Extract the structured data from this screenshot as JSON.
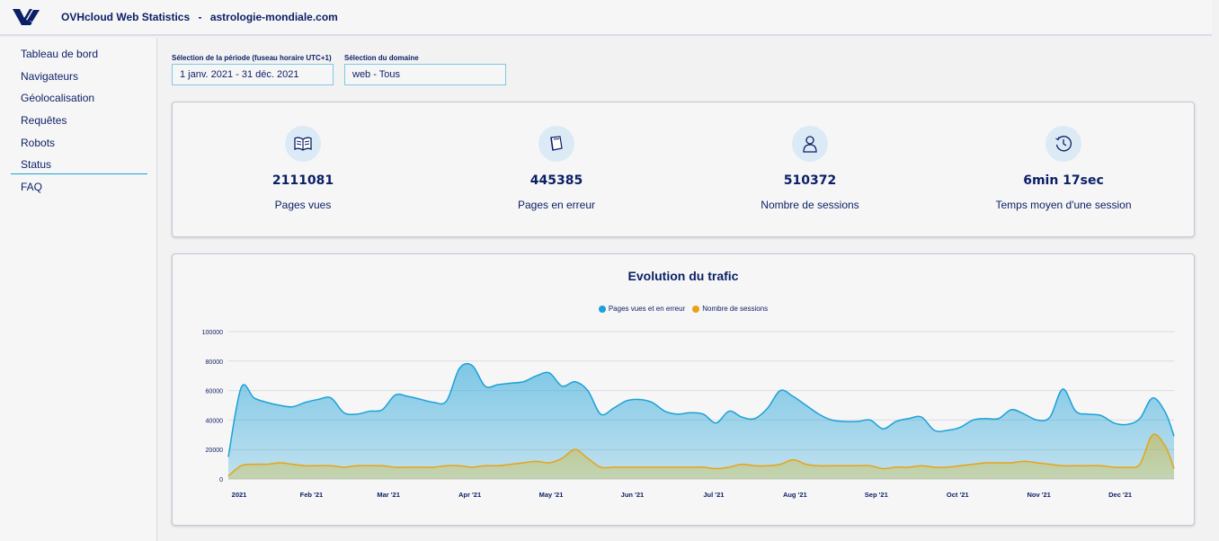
{
  "app": {
    "title": "OVHcloud Web Statistics",
    "separator": "-",
    "domain": "astrologie-mondiale.com"
  },
  "sidebar": {
    "items": [
      {
        "label": "Tableau de bord"
      },
      {
        "label": "Navigateurs"
      },
      {
        "label": "Géolocalisation"
      },
      {
        "label": "Requêtes"
      },
      {
        "label": "Robots"
      },
      {
        "label": "Status"
      },
      {
        "label": "FAQ"
      }
    ]
  },
  "filters": {
    "period_label": "Sélection de la période (fuseau horaire UTC+1)",
    "period_value": "1 janv. 2021 - 31 déc. 2021",
    "domain_label": "Sélection du domaine",
    "domain_value": "web - Tous"
  },
  "kpis": [
    {
      "icon": "open-book-icon",
      "value": "2111081",
      "label": "Pages vues"
    },
    {
      "icon": "closed-book-icon",
      "value": "445385",
      "label": "Pages en erreur"
    },
    {
      "icon": "user-icon",
      "value": "510372",
      "label": "Nombre de sessions"
    },
    {
      "icon": "clock-history-icon",
      "value": "6min 17sec",
      "label": "Temps moyen d'une session"
    }
  ],
  "colors": {
    "accent": "#1ca1d8",
    "sessions": "#e8a317",
    "text": "#0b1f66"
  },
  "chart_data": {
    "type": "area",
    "title": "Evolution du trafic",
    "x_ticks": [
      "2021",
      "Feb '21",
      "Mar '21",
      "Apr '21",
      "May '21",
      "Jun '21",
      "Jul '21",
      "Aug '21",
      "Sep '21",
      "Oct '21",
      "Nov '21",
      "Dec '21"
    ],
    "y_ticks": [
      "100000",
      "80000",
      "60000",
      "40000",
      "20000",
      "0"
    ],
    "ylim": [
      0,
      100000
    ],
    "legend_placement": "top-center",
    "grid": true,
    "series": [
      {
        "name": "Pages vues et en erreur",
        "color": "#1ca1d8",
        "points": [
          [
            0,
            15000
          ],
          [
            3,
            62000
          ],
          [
            6,
            55000
          ],
          [
            9,
            52000
          ],
          [
            12,
            50000
          ],
          [
            15,
            49000
          ],
          [
            18,
            52000
          ],
          [
            21,
            54000
          ],
          [
            24,
            55000
          ],
          [
            27,
            45000
          ],
          [
            30,
            44000
          ],
          [
            33,
            46000
          ],
          [
            36,
            47000
          ],
          [
            39,
            57000
          ],
          [
            42,
            56000
          ],
          [
            45,
            54000
          ],
          [
            48,
            52000
          ],
          [
            51,
            53000
          ],
          [
            54,
            75000
          ],
          [
            57,
            77000
          ],
          [
            60,
            63000
          ],
          [
            63,
            64000
          ],
          [
            66,
            65000
          ],
          [
            69,
            66000
          ],
          [
            72,
            70000
          ],
          [
            75,
            72000
          ],
          [
            78,
            63000
          ],
          [
            81,
            66000
          ],
          [
            84,
            60000
          ],
          [
            87,
            44000
          ],
          [
            90,
            48000
          ],
          [
            93,
            53000
          ],
          [
            96,
            54000
          ],
          [
            99,
            52000
          ],
          [
            102,
            46000
          ],
          [
            105,
            44000
          ],
          [
            108,
            45000
          ],
          [
            111,
            44000
          ],
          [
            114,
            38000
          ],
          [
            117,
            46000
          ],
          [
            120,
            42000
          ],
          [
            123,
            41000
          ],
          [
            126,
            48000
          ],
          [
            129,
            60000
          ],
          [
            132,
            56000
          ],
          [
            135,
            50000
          ],
          [
            138,
            44000
          ],
          [
            141,
            40000
          ],
          [
            144,
            39000
          ],
          [
            147,
            39000
          ],
          [
            150,
            40000
          ],
          [
            153,
            34000
          ],
          [
            156,
            39000
          ],
          [
            159,
            41000
          ],
          [
            162,
            42000
          ],
          [
            165,
            33000
          ],
          [
            168,
            33000
          ],
          [
            171,
            35000
          ],
          [
            174,
            40000
          ],
          [
            177,
            41000
          ],
          [
            180,
            41000
          ],
          [
            183,
            47000
          ],
          [
            186,
            44000
          ],
          [
            189,
            40000
          ],
          [
            192,
            42000
          ],
          [
            195,
            61000
          ],
          [
            198,
            46000
          ],
          [
            201,
            44000
          ],
          [
            204,
            43000
          ],
          [
            207,
            38000
          ],
          [
            210,
            37000
          ],
          [
            213,
            41000
          ],
          [
            216,
            55000
          ],
          [
            219,
            45000
          ],
          [
            221,
            29000
          ]
        ]
      },
      {
        "name": "Nombre de sessions",
        "color": "#e8a317",
        "points": [
          [
            0,
            2000
          ],
          [
            3,
            9000
          ],
          [
            6,
            10000
          ],
          [
            9,
            10000
          ],
          [
            12,
            11000
          ],
          [
            15,
            10000
          ],
          [
            18,
            9000
          ],
          [
            21,
            9000
          ],
          [
            24,
            9000
          ],
          [
            27,
            8000
          ],
          [
            30,
            9000
          ],
          [
            33,
            9000
          ],
          [
            36,
            9000
          ],
          [
            39,
            8000
          ],
          [
            42,
            8000
          ],
          [
            45,
            8000
          ],
          [
            48,
            8000
          ],
          [
            51,
            9000
          ],
          [
            54,
            9000
          ],
          [
            57,
            8000
          ],
          [
            60,
            9000
          ],
          [
            63,
            9000
          ],
          [
            66,
            10000
          ],
          [
            69,
            11000
          ],
          [
            72,
            12000
          ],
          [
            75,
            11000
          ],
          [
            78,
            14000
          ],
          [
            81,
            20000
          ],
          [
            84,
            14000
          ],
          [
            87,
            8000
          ],
          [
            90,
            8000
          ],
          [
            93,
            8000
          ],
          [
            96,
            8000
          ],
          [
            99,
            8000
          ],
          [
            102,
            8000
          ],
          [
            105,
            8000
          ],
          [
            108,
            8000
          ],
          [
            111,
            8000
          ],
          [
            114,
            7000
          ],
          [
            117,
            8000
          ],
          [
            120,
            10000
          ],
          [
            123,
            9000
          ],
          [
            126,
            9000
          ],
          [
            129,
            10000
          ],
          [
            132,
            13000
          ],
          [
            135,
            10000
          ],
          [
            138,
            9000
          ],
          [
            141,
            9000
          ],
          [
            144,
            9000
          ],
          [
            147,
            9000
          ],
          [
            150,
            9000
          ],
          [
            153,
            7000
          ],
          [
            156,
            8000
          ],
          [
            159,
            8000
          ],
          [
            162,
            9000
          ],
          [
            165,
            8000
          ],
          [
            168,
            8000
          ],
          [
            171,
            9000
          ],
          [
            174,
            10000
          ],
          [
            177,
            11000
          ],
          [
            180,
            11000
          ],
          [
            183,
            11000
          ],
          [
            186,
            12000
          ],
          [
            189,
            11000
          ],
          [
            192,
            10000
          ],
          [
            195,
            9000
          ],
          [
            198,
            9000
          ],
          [
            201,
            9000
          ],
          [
            204,
            9000
          ],
          [
            207,
            8000
          ],
          [
            210,
            8000
          ],
          [
            213,
            10000
          ],
          [
            216,
            30000
          ],
          [
            219,
            22000
          ],
          [
            221,
            7000
          ]
        ]
      }
    ],
    "x_domain": [
      0,
      221
    ],
    "x_tick_positions": [
      0,
      19,
      37,
      56,
      75,
      94,
      113,
      132,
      151,
      170,
      189,
      208
    ]
  }
}
